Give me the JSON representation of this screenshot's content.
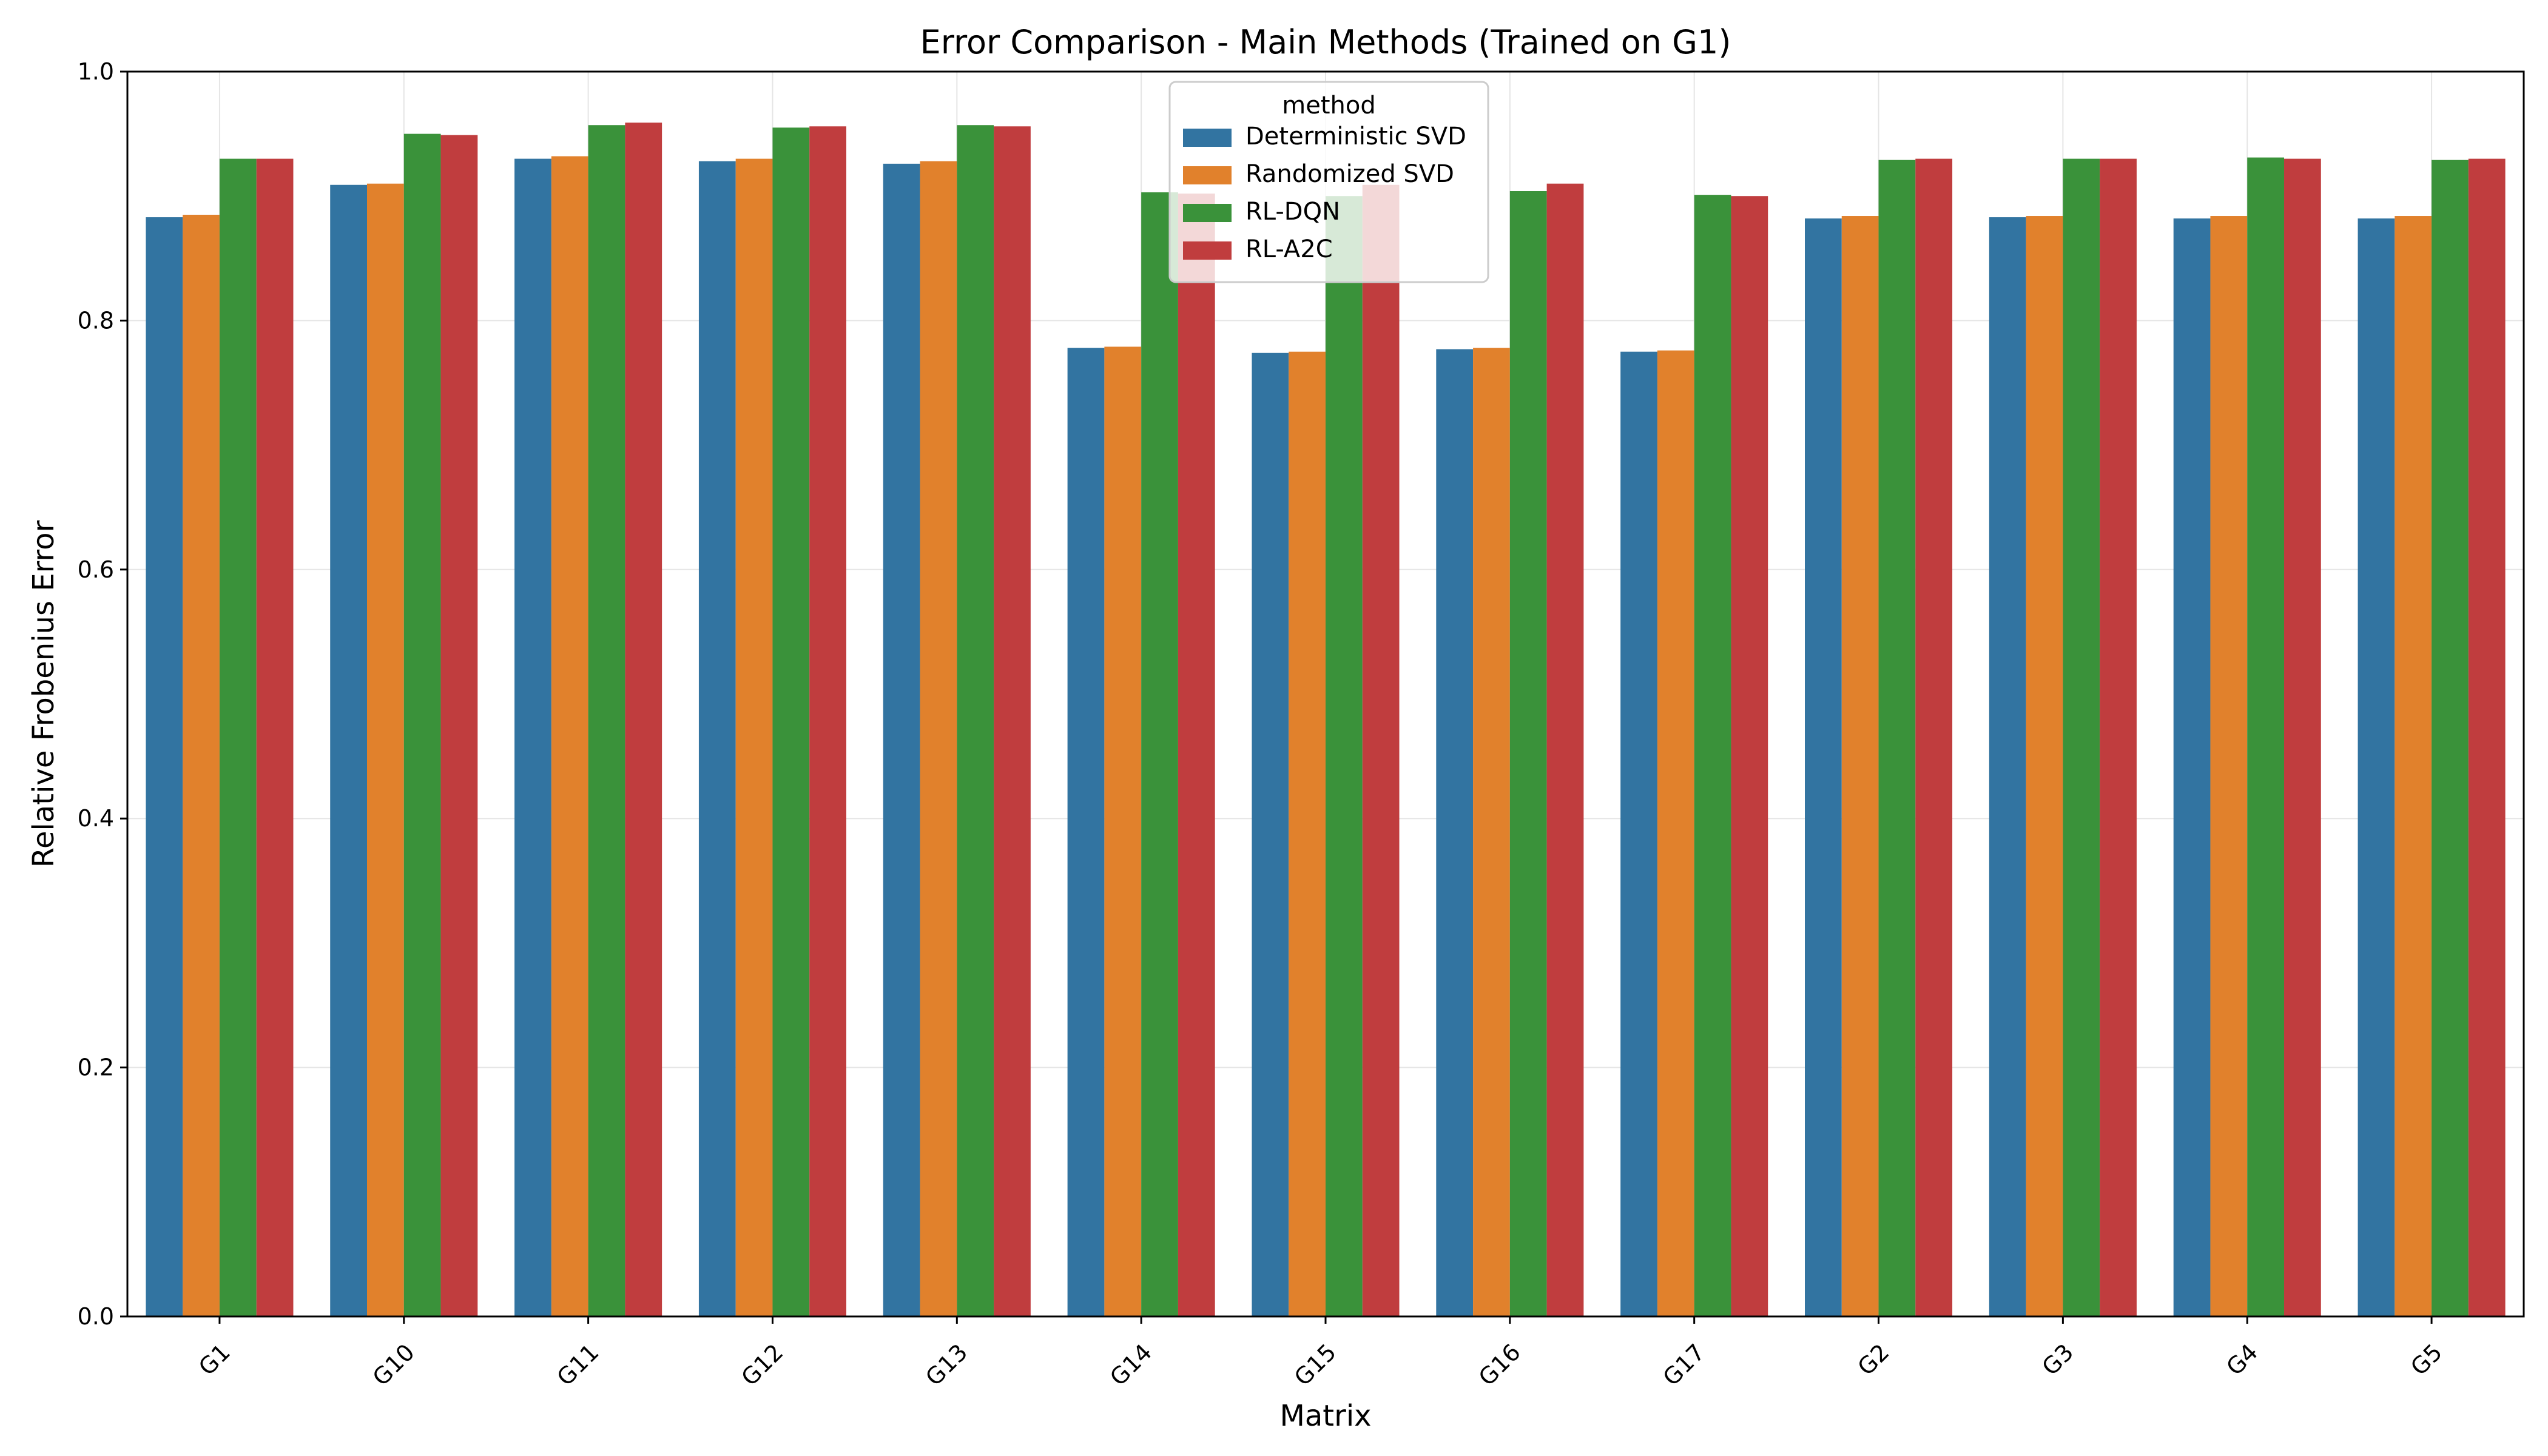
{
  "chart_data": {
    "type": "bar",
    "title": "Error Comparison - Main Methods (Trained on G1)",
    "xlabel": "Matrix",
    "ylabel": "Relative Frobenius Error",
    "ylim": [
      0,
      1.0
    ],
    "yticks": [
      "0.0",
      "0.2",
      "0.4",
      "0.6",
      "0.8",
      "1.0"
    ],
    "grid": true,
    "legend": {
      "title": "method",
      "placement": "top-center"
    },
    "categories": [
      "G1",
      "G10",
      "G11",
      "G12",
      "G13",
      "G14",
      "G15",
      "G16",
      "G17",
      "G2",
      "G3",
      "G4",
      "G5"
    ],
    "series": [
      {
        "name": "Deterministic SVD",
        "color": "#3274a1",
        "values": [
          0.883,
          0.909,
          0.93,
          0.928,
          0.926,
          0.778,
          0.774,
          0.777,
          0.775,
          0.882,
          0.883,
          0.882,
          0.882
        ]
      },
      {
        "name": "Randomized SVD",
        "color": "#e1812c",
        "values": [
          0.885,
          0.91,
          0.932,
          0.93,
          0.928,
          0.779,
          0.775,
          0.778,
          0.776,
          0.884,
          0.884,
          0.884,
          0.884
        ]
      },
      {
        "name": "RL-DQN",
        "color": "#3a923a",
        "values": [
          0.93,
          0.95,
          0.957,
          0.955,
          0.957,
          0.903,
          0.9,
          0.904,
          0.901,
          0.929,
          0.93,
          0.931,
          0.929
        ]
      },
      {
        "name": "RL-A2C",
        "color": "#c03d3e",
        "values": [
          0.93,
          0.949,
          0.959,
          0.956,
          0.956,
          0.902,
          0.909,
          0.91,
          0.9,
          0.93,
          0.93,
          0.93,
          0.93
        ]
      }
    ]
  }
}
